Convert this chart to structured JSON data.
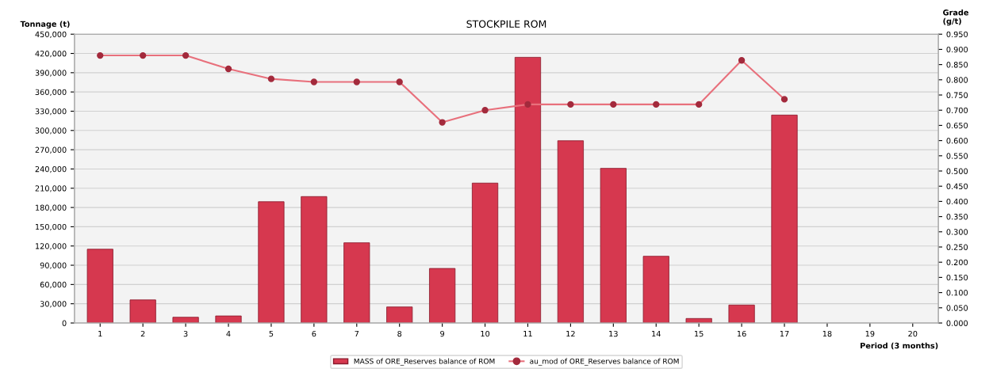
{
  "chart_data": {
    "type": "bar",
    "title": "STOCKPILE ROM",
    "xlabel": "Period (3 months)",
    "ylabel": "Tonnage (t)",
    "y2label": "Grade\n(g/t)",
    "categories": [
      "1",
      "2",
      "3",
      "4",
      "5",
      "6",
      "7",
      "8",
      "9",
      "10",
      "11",
      "12",
      "13",
      "14",
      "15",
      "16",
      "17",
      "18",
      "19",
      "20"
    ],
    "series": [
      {
        "name": "MASS of ORE_Reserves balance of ROM",
        "color": "#d6384f",
        "values": [
          115000,
          36000,
          9000,
          11000,
          189000,
          197000,
          125000,
          25000,
          85000,
          218000,
          414000,
          284000,
          241000,
          104000,
          7000,
          28000,
          324000,
          null,
          null,
          null
        ]
      },
      {
        "name": "au_mod of ORE_Reserves balance of ROM",
        "type": "line",
        "axis": "y2",
        "color": "#e8707c",
        "marker": "circle",
        "values": [
          0.88,
          0.88,
          0.88,
          0.836,
          0.803,
          0.793,
          0.793,
          0.793,
          0.66,
          0.7,
          0.719,
          0.719,
          0.719,
          0.719,
          0.719,
          0.864,
          0.736,
          null,
          null,
          null
        ]
      }
    ],
    "ylim": [
      0,
      450000
    ],
    "yticks": [
      {
        "value": 0,
        "label": "0"
      },
      {
        "value": 30000,
        "label": "30,000"
      },
      {
        "value": 60000,
        "label": "60,000"
      },
      {
        "value": 90000,
        "label": "90,000"
      },
      {
        "value": 120000,
        "label": "120,000"
      },
      {
        "value": 150000,
        "label": "150,000"
      },
      {
        "value": 180000,
        "label": "180,000"
      },
      {
        "value": 210000,
        "label": "210,000"
      },
      {
        "value": 240000,
        "label": "240,000"
      },
      {
        "value": 270000,
        "label": "270,000"
      },
      {
        "value": 300000,
        "label": "300,000"
      },
      {
        "value": 330000,
        "label": "330,000"
      },
      {
        "value": 360000,
        "label": "360,000"
      },
      {
        "value": 390000,
        "label": "390,000"
      },
      {
        "value": 420000,
        "label": "420,000"
      },
      {
        "value": 450000,
        "label": "450,000"
      }
    ],
    "y2lim": [
      0,
      0.95
    ],
    "y2ticks": [
      {
        "value": 0,
        "label": "0.000"
      },
      {
        "value": 0.05,
        "label": "0.050"
      },
      {
        "value": 0.1,
        "label": "0.100"
      },
      {
        "value": 0.15,
        "label": "0.150"
      },
      {
        "value": 0.2,
        "label": "0.200"
      },
      {
        "value": 0.25,
        "label": "0.250"
      },
      {
        "value": 0.3,
        "label": "0.300"
      },
      {
        "value": 0.35,
        "label": "0.350"
      },
      {
        "value": 0.4,
        "label": "0.400"
      },
      {
        "value": 0.45,
        "label": "0.450"
      },
      {
        "value": 0.5,
        "label": "0.500"
      },
      {
        "value": 0.55,
        "label": "0.550"
      },
      {
        "value": 0.6,
        "label": "0.600"
      },
      {
        "value": 0.65,
        "label": "0.650"
      },
      {
        "value": 0.7,
        "label": "0.700"
      },
      {
        "value": 0.75,
        "label": "0.750"
      },
      {
        "value": 0.8,
        "label": "0.800"
      },
      {
        "value": 0.85,
        "label": "0.850"
      },
      {
        "value": 0.9,
        "label": "0.900"
      },
      {
        "value": 0.95,
        "label": "0.950"
      }
    ],
    "grid": "y",
    "legend": "bottom"
  }
}
